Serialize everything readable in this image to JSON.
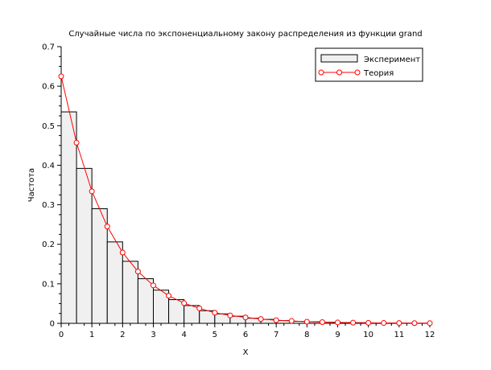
{
  "chart_data": {
    "type": "bar",
    "title": "Случайные числа по экспоненциальному закону распределения из функции grand",
    "xlabel": "X",
    "ylabel": "Частота",
    "xlim": [
      0,
      12
    ],
    "ylim": [
      0,
      0.7
    ],
    "xticks": [
      "0",
      "1",
      "2",
      "3",
      "4",
      "5",
      "6",
      "7",
      "8",
      "9",
      "10",
      "11",
      "12"
    ],
    "yticks": [
      "0",
      "0.1",
      "0.2",
      "0.3",
      "0.4",
      "0.5",
      "0.6",
      "0.7"
    ],
    "grid": false,
    "legend_position": "top-right",
    "histogram": {
      "name": "Эксперимент",
      "bin_width": 0.5,
      "bin_starts": [
        0,
        0.5,
        1,
        1.5,
        2,
        2.5,
        3,
        3.5,
        4,
        4.5,
        5,
        5.5,
        6,
        6.5,
        7,
        7.5,
        8,
        8.5,
        9,
        9.5,
        10,
        10.5,
        11,
        11.5
      ],
      "values": [
        0.535,
        0.392,
        0.29,
        0.206,
        0.157,
        0.113,
        0.084,
        0.06,
        0.045,
        0.032,
        0.024,
        0.018,
        0.013,
        0.01,
        0.007,
        0.005,
        0.004,
        0.003,
        0.002,
        0.0015,
        0.001,
        0.0008,
        0.0005,
        0.0003
      ],
      "fill": "#f0f0f0",
      "stroke": "#000000"
    },
    "line": {
      "name": "Теория",
      "x": [
        0,
        0.5,
        1,
        1.5,
        2,
        2.5,
        3,
        3.5,
        4,
        4.5,
        5,
        5.5,
        6,
        6.5,
        7,
        7.5,
        8,
        8.5,
        9,
        9.5,
        10,
        10.5,
        11,
        11.5,
        12
      ],
      "y": [
        0.625,
        0.457,
        0.334,
        0.245,
        0.179,
        0.131,
        0.096,
        0.07,
        0.051,
        0.038,
        0.027,
        0.02,
        0.015,
        0.011,
        0.008,
        0.006,
        0.004,
        0.003,
        0.0024,
        0.0017,
        0.0013,
        0.0009,
        0.0007,
        0.0005,
        0.0004
      ],
      "color": "#ff0000"
    }
  }
}
